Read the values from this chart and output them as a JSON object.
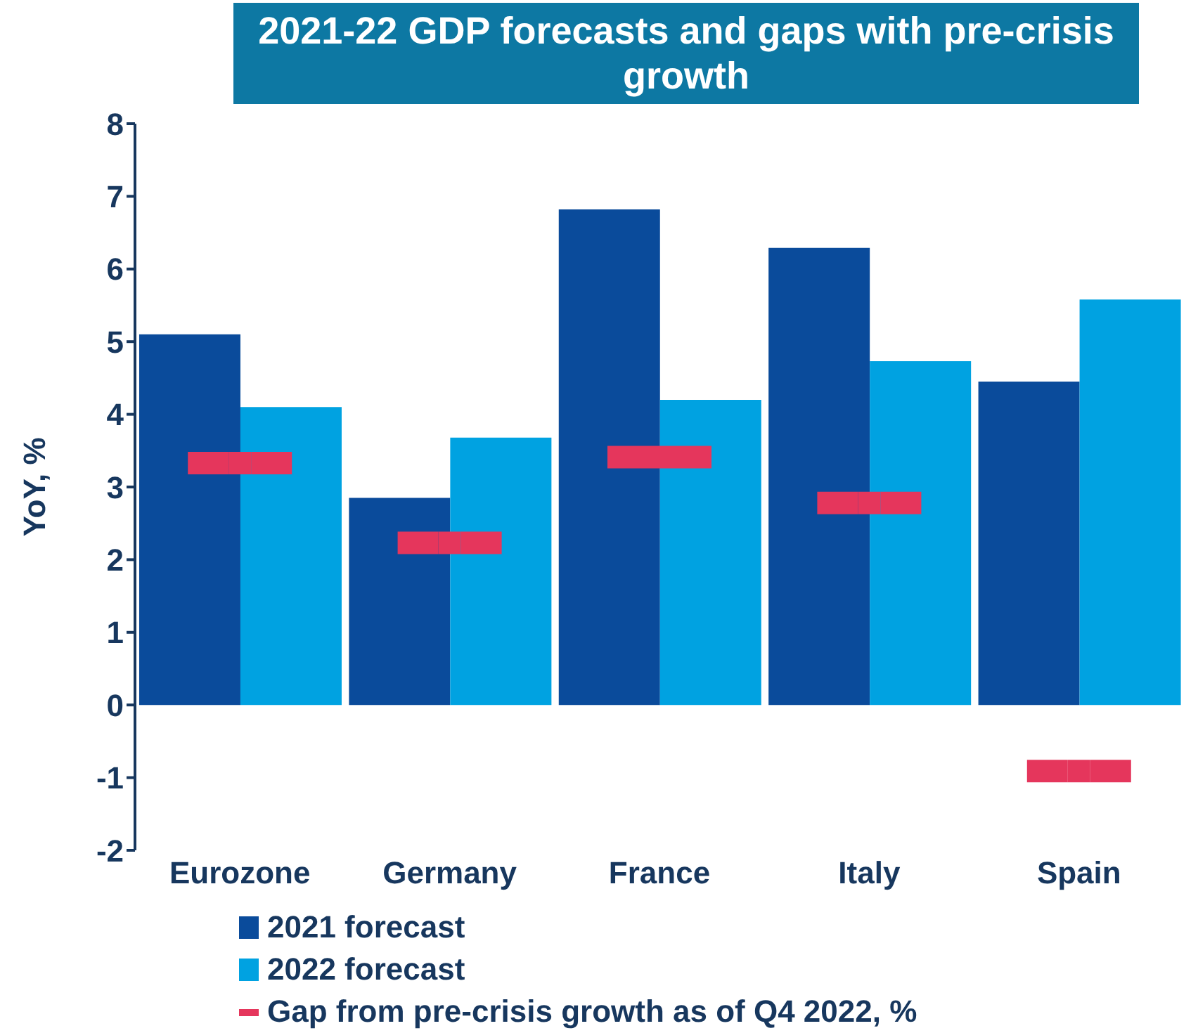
{
  "chart_data": {
    "type": "bar",
    "title": "2021-22 GDP forecasts and gaps with pre-crisis growth",
    "ylabel": "YoY, %",
    "categories": [
      "Eurozone",
      "Germany",
      "France",
      "Italy",
      "Spain"
    ],
    "series": [
      {
        "name": "2021 forecast",
        "color": "#0a4b9b",
        "values": [
          5.1,
          2.85,
          6.82,
          6.29,
          4.45
        ]
      },
      {
        "name": "2022 forecast",
        "color": "#00a2e1",
        "values": [
          4.1,
          3.68,
          4.2,
          4.73,
          5.58
        ]
      },
      {
        "name": "Gap from pre-crisis growth as of Q4 2022, %",
        "type": "scatter",
        "color": "#e5365c",
        "values": [
          3.33,
          2.23,
          3.41,
          2.78,
          -0.91
        ]
      }
    ],
    "ylim": [
      -2,
      8
    ],
    "yticks": [
      -2,
      -1,
      0,
      1,
      2,
      3,
      4,
      5,
      6,
      7,
      8
    ],
    "grid": false,
    "legend": "bottom"
  }
}
